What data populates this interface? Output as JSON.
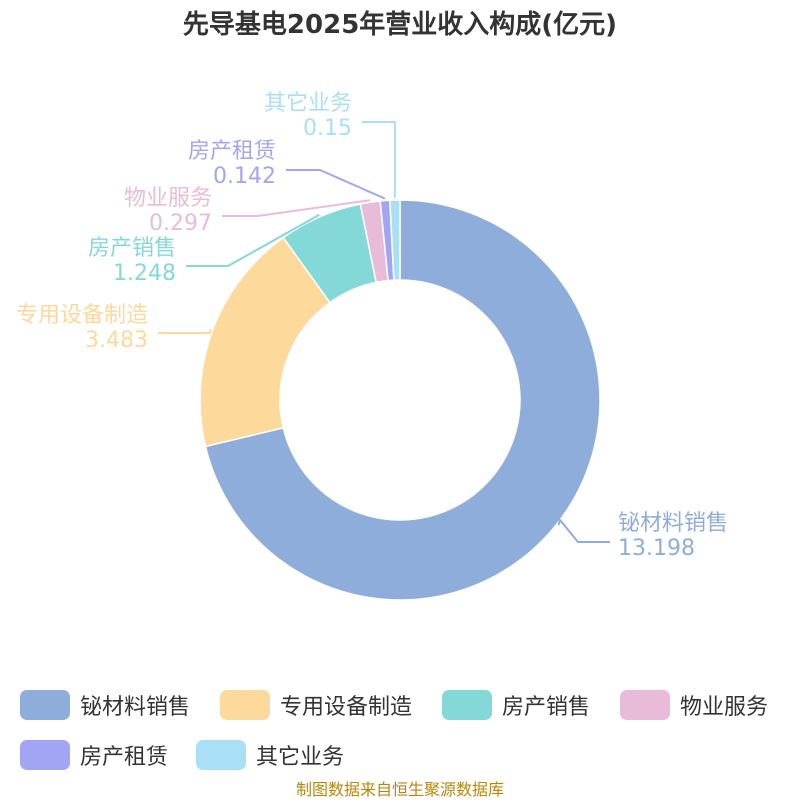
{
  "chart_data": {
    "type": "pie",
    "title": "先导基电2025年营业收入构成(亿元)",
    "categories": [
      "铋材料销售",
      "专用设备制造",
      "房产销售",
      "物业服务",
      "房产租赁",
      "其它业务"
    ],
    "values": [
      13.198,
      3.483,
      1.248,
      0.297,
      0.142,
      0.15
    ],
    "value_labels": [
      "13.198",
      "3.483",
      "1.248",
      "0.297",
      "0.142",
      "0.15"
    ],
    "colors": [
      "#8eadda",
      "#fdd99b",
      "#84d8d8",
      "#e8bcd8",
      "#a1a5f3",
      "#a9e0f6"
    ],
    "donut": true,
    "legend_position": "bottom"
  },
  "source_note": "制图数据来自恒生聚源数据库"
}
